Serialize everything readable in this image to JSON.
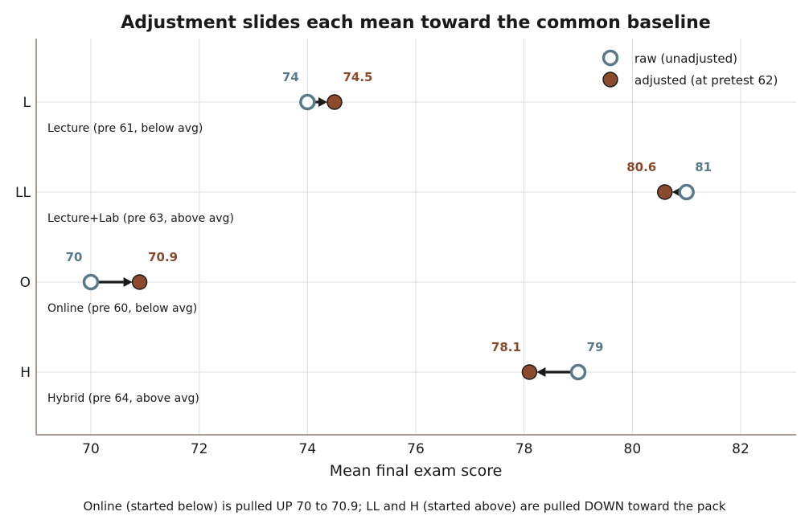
{
  "chart_data": {
    "type": "scatter",
    "title": "Adjustment slides each mean toward the common baseline",
    "xlabel": "Mean final exam score",
    "caption": "Online (started below) is pulled UP 70 to 70.9; LL and H (started above) are pulled DOWN toward the pack",
    "xlim": [
      69,
      83
    ],
    "xticks": [
      70,
      72,
      74,
      76,
      78,
      80,
      82
    ],
    "categories": [
      "L",
      "LL",
      "O",
      "H"
    ],
    "group_labels": [
      "Lecture (pre 61, below avg)",
      "Lecture+Lab (pre 63, above avg)",
      "Online (pre 60, below avg)",
      "Hybrid (pre 64, above avg)"
    ],
    "raw_labels": [
      "74",
      "81",
      "70",
      "79"
    ],
    "adjusted_labels": [
      "74.5",
      "80.6",
      "70.9",
      "78.1"
    ],
    "series": [
      {
        "name": "raw (unadjusted)",
        "values": [
          74,
          81,
          70,
          79
        ]
      },
      {
        "name": "adjusted (at pretest 62)",
        "values": [
          74.5,
          80.6,
          70.9,
          78.1
        ]
      }
    ],
    "legend_position": "top-right",
    "grid": true,
    "colors": {
      "raw": "#5a7a8c",
      "adjusted": "#8b4a2b",
      "arrow": "#1a1a1a"
    }
  }
}
